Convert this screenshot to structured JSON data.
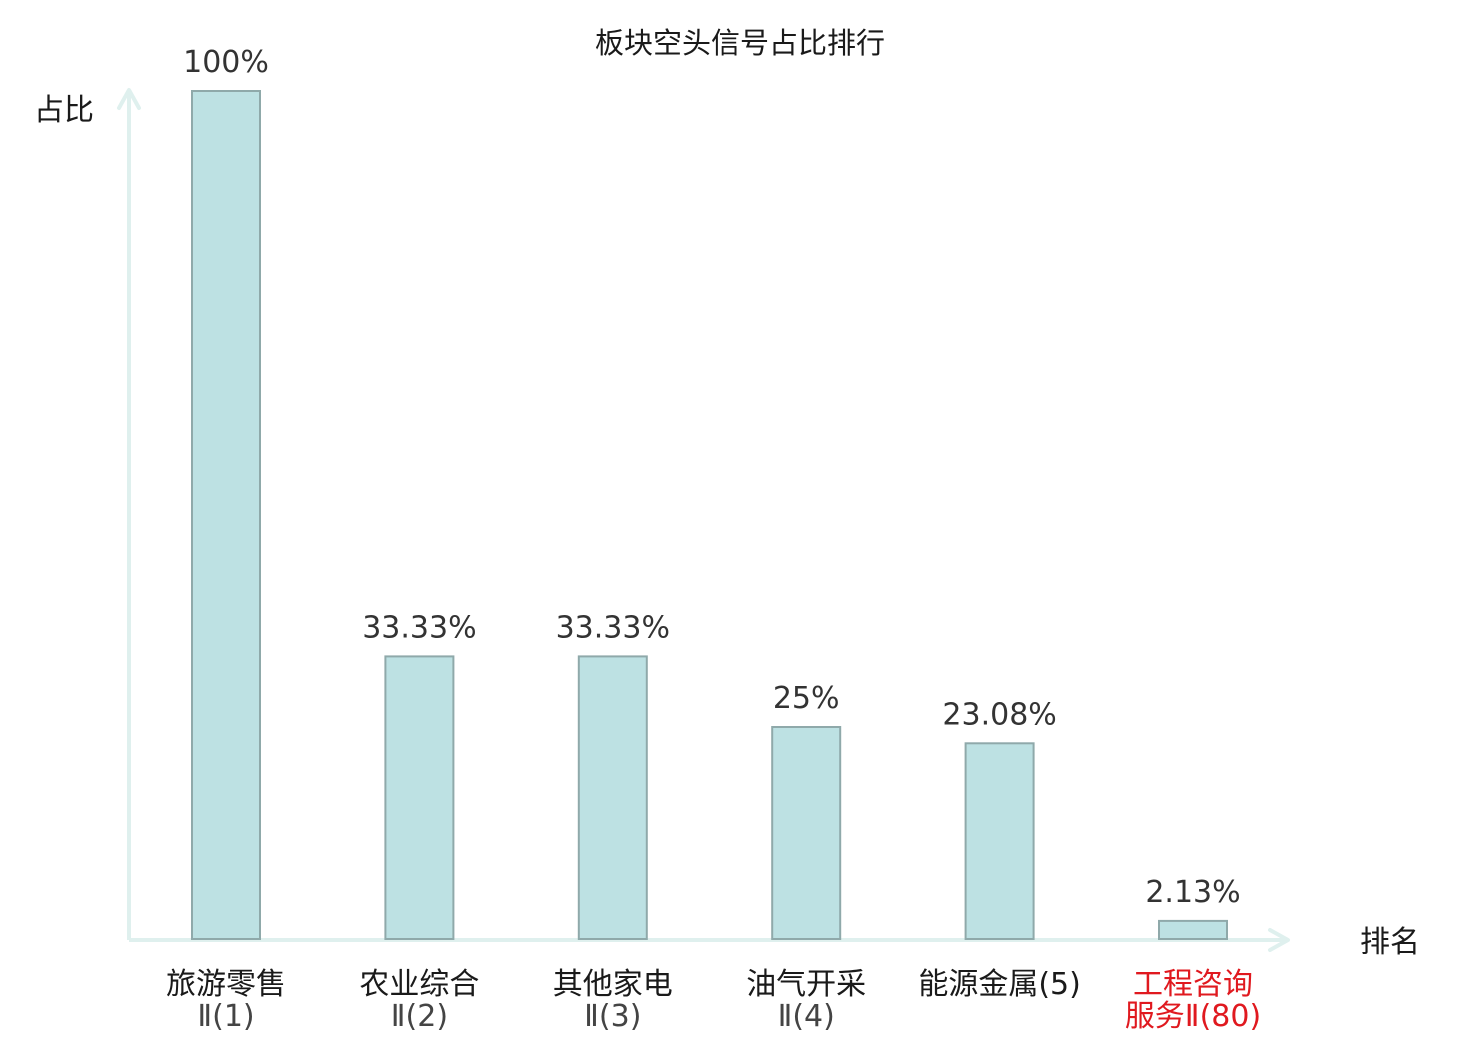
{
  "chart_data": {
    "type": "bar",
    "title": "板块空头信号占比排行",
    "ylabel": "占比",
    "xlabel": "排名",
    "ylim": [
      0,
      100
    ],
    "grid": false,
    "categories": [
      [
        "旅游零售",
        "Ⅱ(1)"
      ],
      [
        "农业综合",
        "Ⅱ(2)"
      ],
      [
        "其他家电",
        "Ⅱ(3)"
      ],
      [
        "油气开采",
        "Ⅱ(4)"
      ],
      [
        "能源金属(5)"
      ],
      [
        "工程咨询",
        "服务Ⅱ(80)"
      ]
    ],
    "values": [
      100,
      33.33,
      33.33,
      25,
      23.08,
      2.13
    ],
    "value_labels": [
      "100%",
      "33.33%",
      "33.33%",
      "25%",
      "23.08%",
      "2.13%"
    ],
    "highlight_index": 5,
    "colors": {
      "bar_fill": "#bde1e3",
      "bar_stroke": "#8fa9aa",
      "axis": "#dff0ee",
      "highlight_text": "#e0191f"
    }
  }
}
